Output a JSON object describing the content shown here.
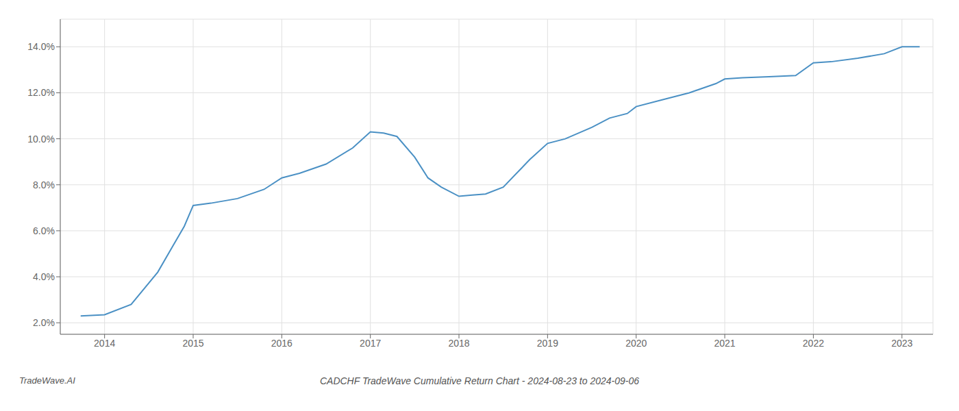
{
  "chart_data": {
    "type": "line",
    "title": "CADCHF TradeWave Cumulative Return Chart - 2024-08-23 to 2024-09-06",
    "annotations": [
      "TradeWave.AI"
    ],
    "x": [
      2013.73,
      2014.0,
      2014.3,
      2014.6,
      2014.9,
      2015.0,
      2015.2,
      2015.5,
      2015.8,
      2016.0,
      2016.2,
      2016.5,
      2016.8,
      2017.0,
      2017.15,
      2017.3,
      2017.5,
      2017.65,
      2017.8,
      2018.0,
      2018.15,
      2018.3,
      2018.5,
      2018.8,
      2019.0,
      2019.2,
      2019.5,
      2019.7,
      2019.9,
      2020.0,
      2020.3,
      2020.6,
      2020.9,
      2021.0,
      2021.2,
      2021.5,
      2021.8,
      2022.0,
      2022.2,
      2022.5,
      2022.8,
      2023.0,
      2023.2
    ],
    "values": [
      2.3,
      2.35,
      2.8,
      4.2,
      6.2,
      7.1,
      7.2,
      7.4,
      7.8,
      8.3,
      8.5,
      8.9,
      9.6,
      10.3,
      10.25,
      10.1,
      9.2,
      8.3,
      7.9,
      7.5,
      7.55,
      7.6,
      7.9,
      9.1,
      9.8,
      10.0,
      10.5,
      10.9,
      11.1,
      11.4,
      11.7,
      12.0,
      12.4,
      12.6,
      12.65,
      12.7,
      12.75,
      13.3,
      13.35,
      13.5,
      13.7,
      14.0,
      14.0
    ],
    "color": "#4a90c4",
    "grid": true,
    "xlim": [
      2013.5,
      2023.35
    ],
    "ylim": [
      1.5,
      15.2
    ],
    "xticks": [
      2014,
      2015,
      2016,
      2017,
      2018,
      2019,
      2020,
      2021,
      2022,
      2023
    ],
    "yticks": [
      {
        "value": 2.0,
        "label": "2.0%"
      },
      {
        "value": 4.0,
        "label": "4.0%"
      },
      {
        "value": 6.0,
        "label": "6.0%"
      },
      {
        "value": 8.0,
        "label": "8.0%"
      },
      {
        "value": 10.0,
        "label": "10.0%"
      },
      {
        "value": 12.0,
        "label": "12.0%"
      },
      {
        "value": 14.0,
        "label": "14.0%"
      }
    ]
  }
}
